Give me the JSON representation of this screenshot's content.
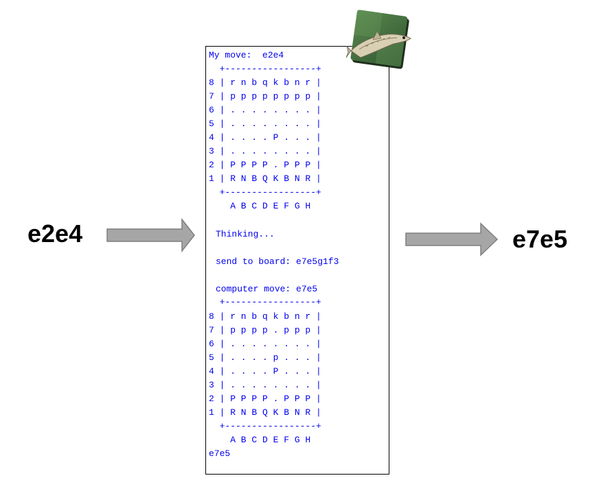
{
  "input_move": "e2e4",
  "output_move": "e7e5",
  "console": {
    "my_move": "My move:  e2e4",
    "board1": {
      "border": "  +-----------------+",
      "rows": [
        "8 | r n b q k b n r |",
        "7 | p p p p p p p p |",
        "6 | . . . . . . . . |",
        "5 | . . . . . . . . |",
        "4 | . . . . P . . . |",
        "3 | . . . . . . . . |",
        "2 | P P P P . P P P |",
        "1 | R N B Q K B N R |"
      ],
      "files": "    A B C D E F G H"
    },
    "thinking": "Thinking...",
    "send_to_board": "send to board: e7e5g1f3",
    "computer_move": "computer move: e7e5",
    "board2": {
      "border": "  +-----------------+",
      "rows": [
        "8 | r n b q k b n r |",
        "7 | p p p p . p p p |",
        "6 | . . . . . . . . |",
        "5 | . . . . p . . . |",
        "4 | . . . . P . . . |",
        "3 | . . . . . . . . |",
        "2 | P P P P . P P P |",
        "1 | R N B Q K B N R |"
      ],
      "files": "    A B C D E F G H"
    },
    "final_output": "e7e5"
  },
  "colors": {
    "console_text": "#0000ee",
    "arrow_fill": "#a6a6a6",
    "arrow_stroke": "#7f7f7f",
    "logo_green": "#3f6b3a"
  },
  "icons": {
    "logo": "stockfish-fish-icon"
  }
}
